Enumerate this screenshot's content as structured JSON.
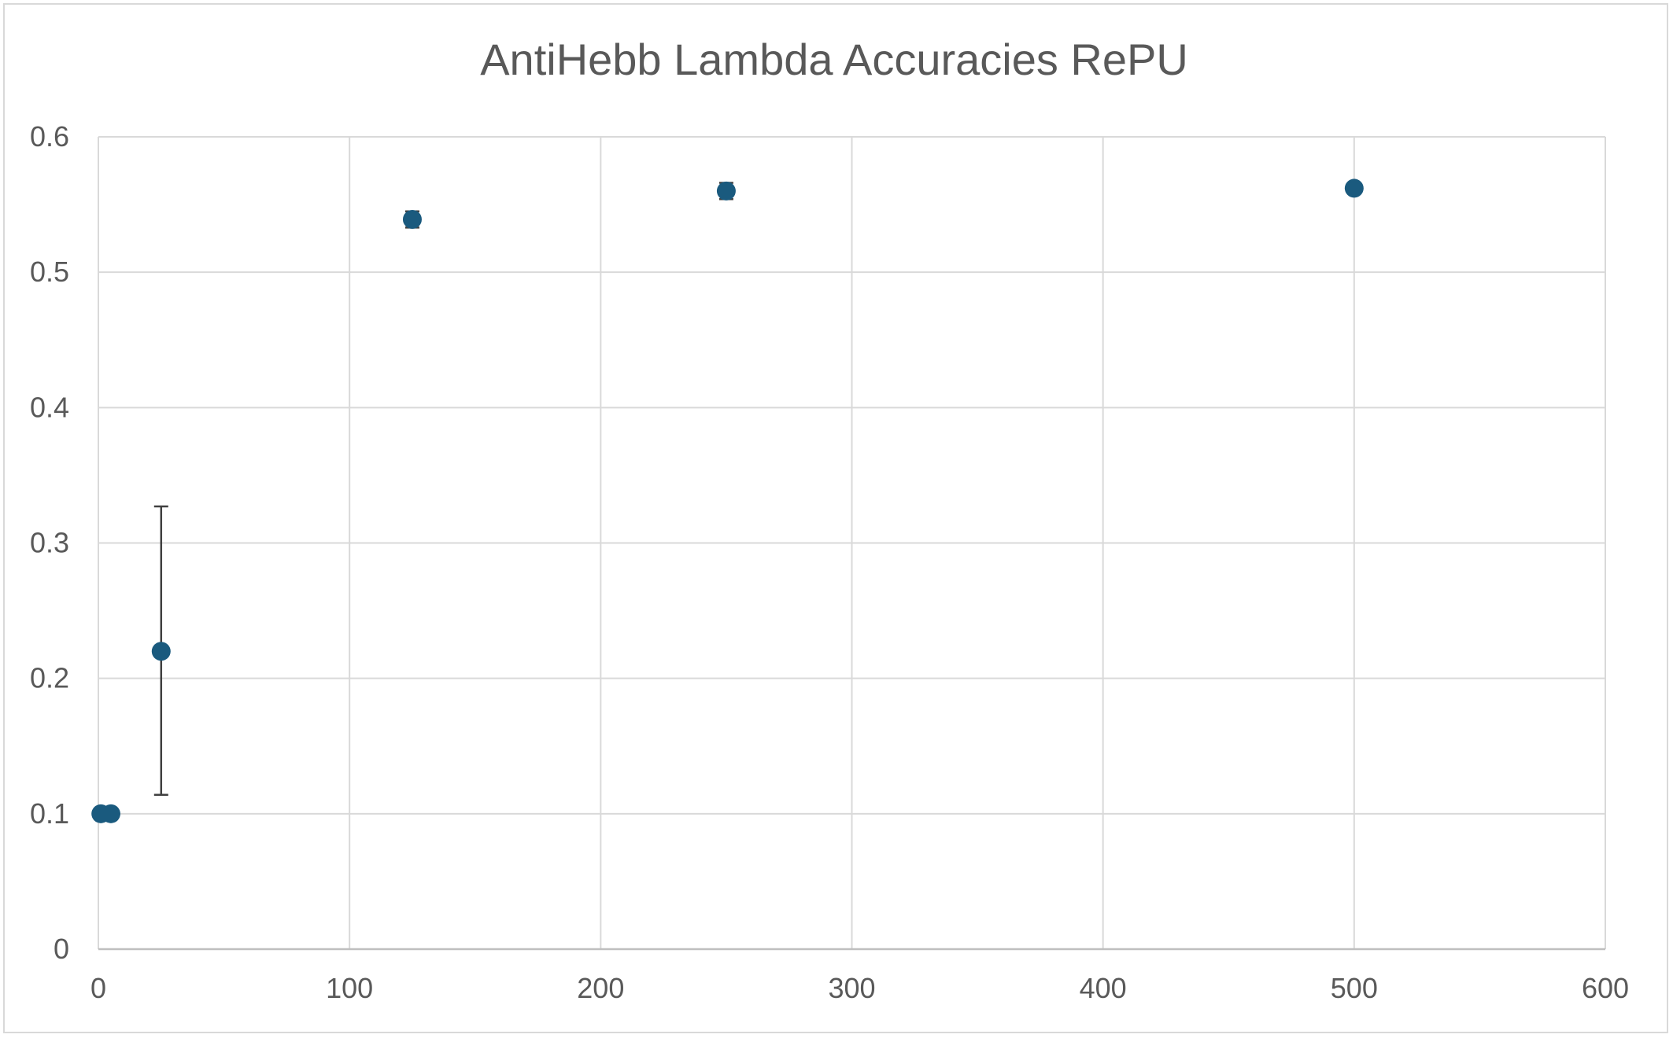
{
  "chart_data": {
    "type": "scatter",
    "title": "AntiHebb Lambda Accuracies RePU",
    "xlabel": "",
    "ylabel": "",
    "xlim": [
      0,
      600
    ],
    "ylim": [
      0,
      0.6
    ],
    "x_ticks": [
      0,
      100,
      200,
      300,
      400,
      500,
      600
    ],
    "y_ticks": [
      0,
      0.1,
      0.2,
      0.3,
      0.4,
      0.5,
      0.6
    ],
    "grid": true,
    "legend": "none",
    "marker_color": "#1a5a7e",
    "gridline_color": "#d9d9d9",
    "text_color": "#595959",
    "error_bar_color": "#404040",
    "points": [
      {
        "x": 1,
        "y": 0.1,
        "err_low": 0.1,
        "err_high": 0.1
      },
      {
        "x": 5,
        "y": 0.1,
        "err_low": 0.1,
        "err_high": 0.1
      },
      {
        "x": 25,
        "y": 0.22,
        "err_low": 0.114,
        "err_high": 0.327
      },
      {
        "x": 125,
        "y": 0.539,
        "err_low": 0.533,
        "err_high": 0.545
      },
      {
        "x": 250,
        "y": 0.56,
        "err_low": 0.554,
        "err_high": 0.566
      },
      {
        "x": 500,
        "y": 0.562,
        "err_low": 0.562,
        "err_high": 0.562
      }
    ]
  }
}
